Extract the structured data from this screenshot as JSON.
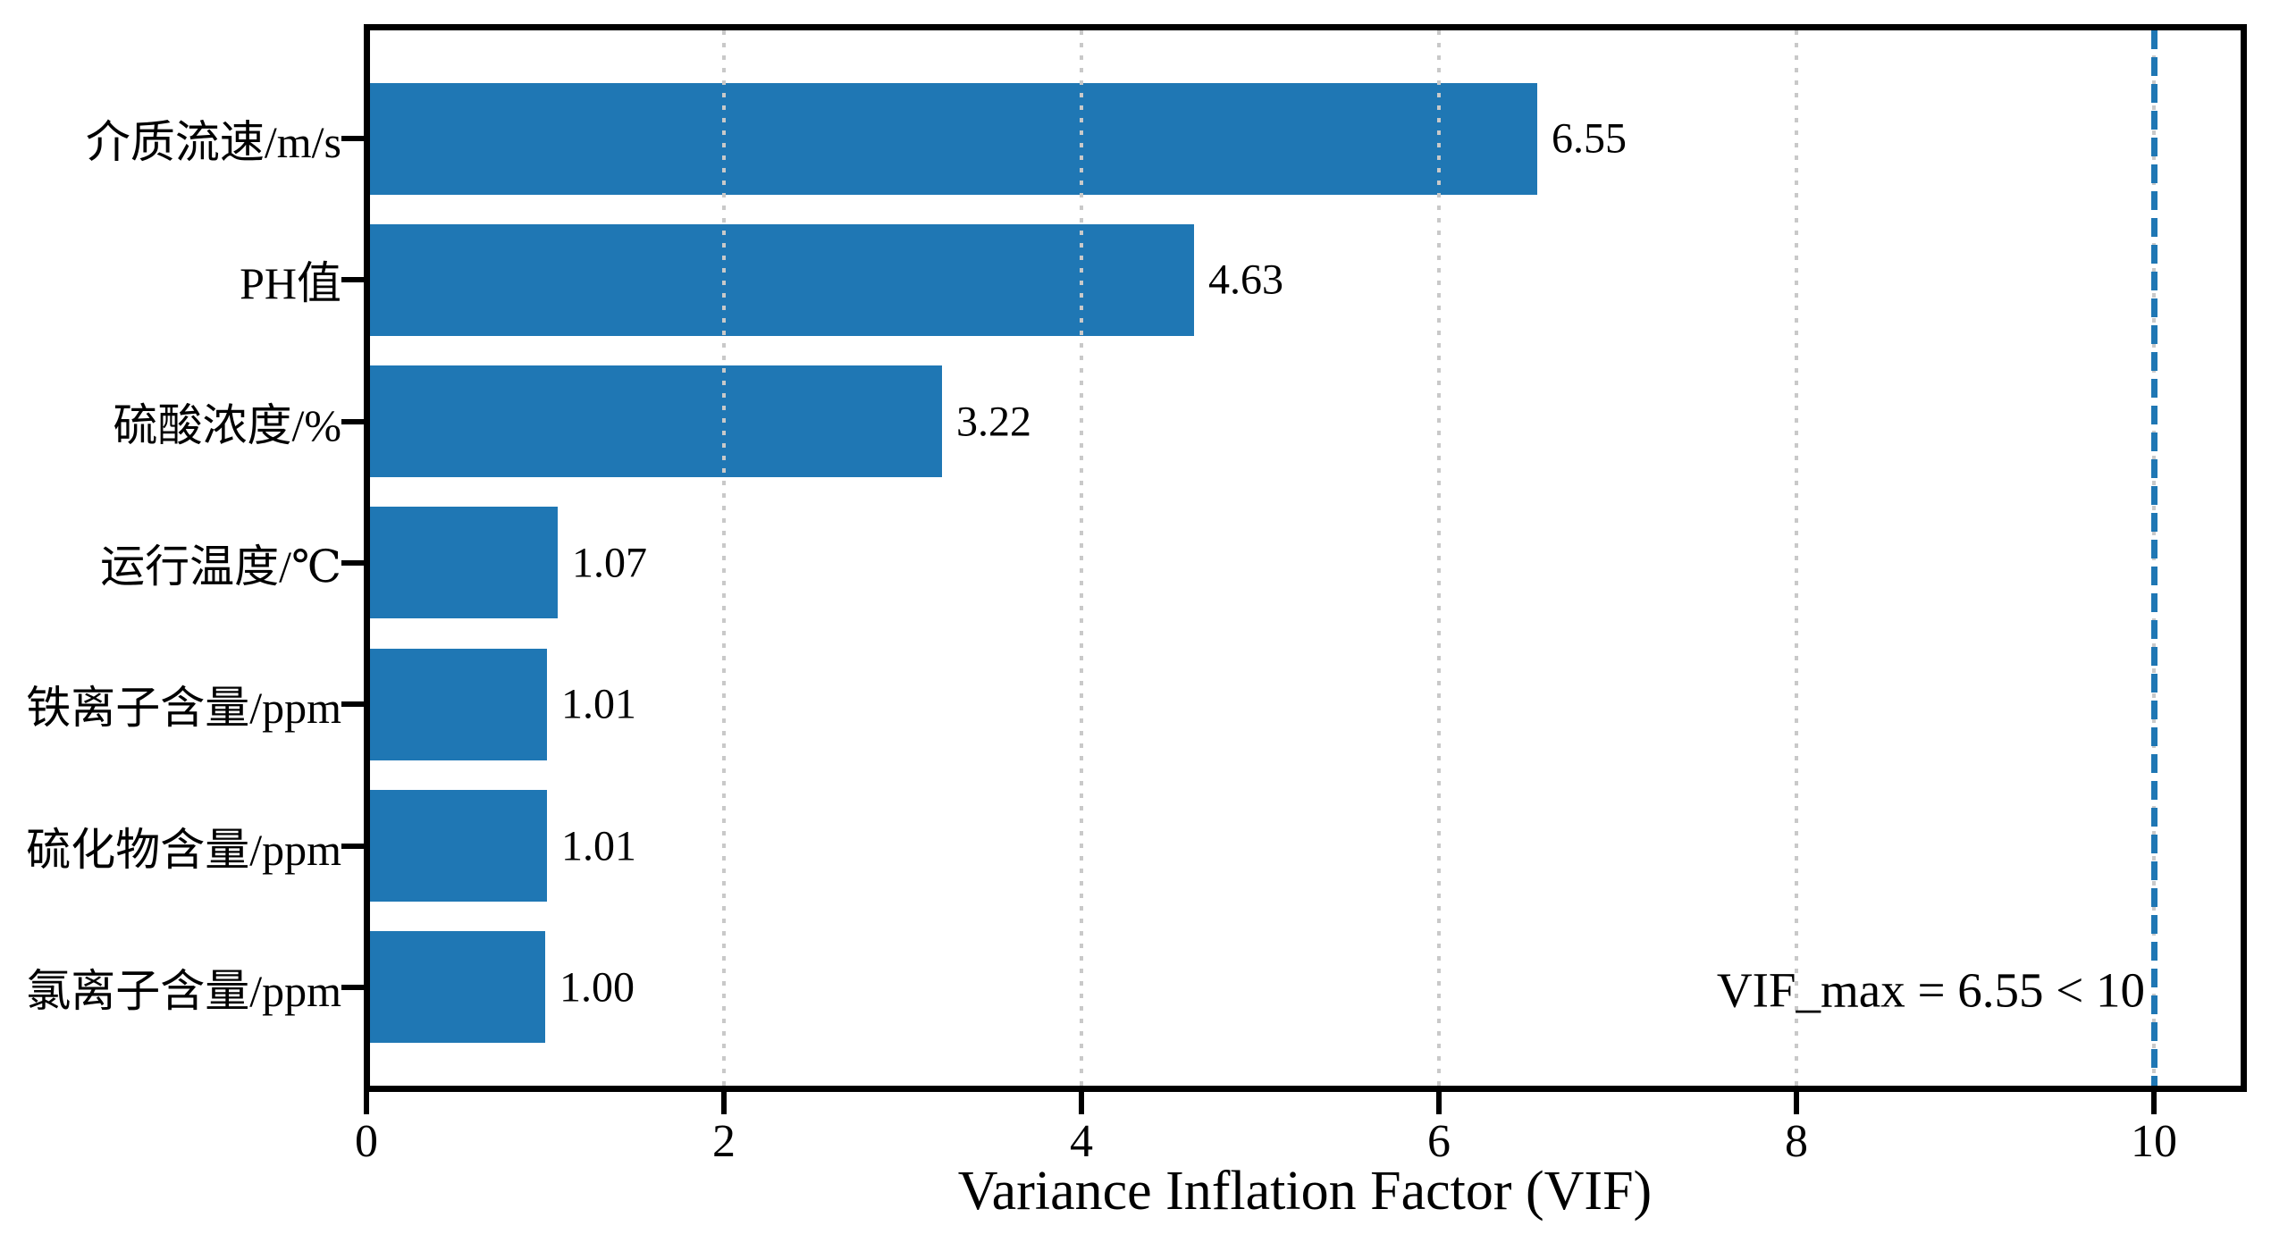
{
  "chart_data": {
    "type": "bar",
    "orientation": "horizontal",
    "title": "",
    "xlabel": "Variance Inflation Factor (VIF)",
    "ylabel": "",
    "categories": [
      "介质流速/m/s",
      "PH值",
      "硫酸浓度/%",
      "运行温度/℃",
      "铁离子含量/ppm",
      "硫化物含量/ppm",
      "氯离子含量/ppm"
    ],
    "values": [
      6.55,
      4.63,
      3.22,
      1.07,
      1.01,
      1.01,
      1.0
    ],
    "value_labels": [
      "6.55",
      "4.63",
      "3.22",
      "1.07",
      "1.01",
      "1.01",
      "1.00"
    ],
    "xlim": [
      0,
      10.5
    ],
    "x_ticks": [
      0,
      2,
      4,
      6,
      8,
      10
    ],
    "x_tick_labels": [
      "0",
      "2",
      "4",
      "6",
      "8",
      "10"
    ],
    "grid": "vertical dotted at x ticks (2,4,6,8,10)",
    "legend": "none",
    "threshold_line": {
      "x": 10,
      "style": "dashed",
      "label": ""
    },
    "annotation": "VIF_max = 6.55 < 10",
    "colors": {
      "bar": "#1f77b4",
      "threshold_line": "#1f77b4",
      "grid": "#c9c9c9",
      "axis": "#000000",
      "text": "#000000",
      "background": "#ffffff"
    }
  }
}
